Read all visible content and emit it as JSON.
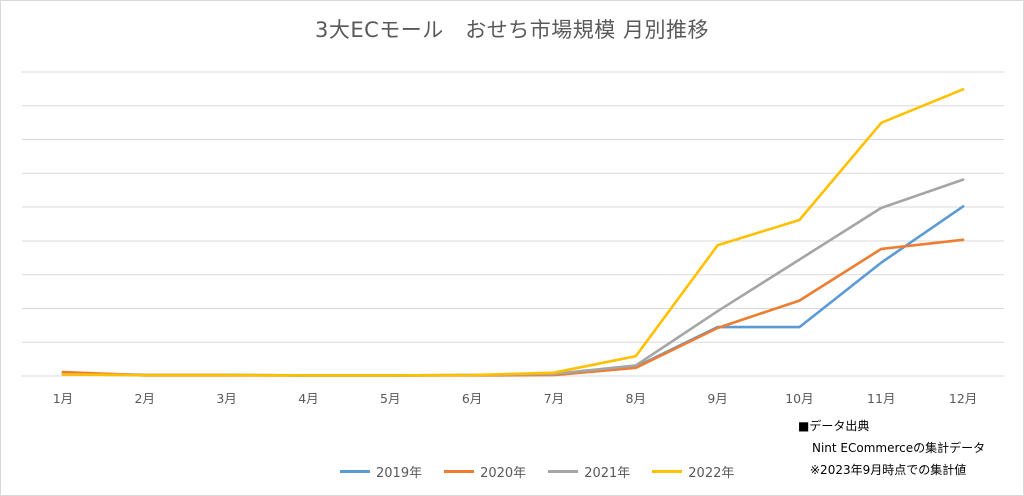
{
  "chart_data": {
    "type": "line",
    "title": "3大ECモール　おせち市場規模 月別推移",
    "xlabel": "",
    "ylabel": "",
    "categories": [
      "1月",
      "2月",
      "3月",
      "4月",
      "5月",
      "6月",
      "7月",
      "8月",
      "9月",
      "10月",
      "11月",
      "12月"
    ],
    "ylim": [
      0,
      100
    ],
    "y_gridlines": [
      0,
      11.1,
      22.2,
      33.3,
      44.4,
      55.6,
      66.7,
      77.8,
      88.9,
      100
    ],
    "grid": true,
    "legend_position": "bottom",
    "series": [
      {
        "name": "2019年",
        "color": "#5b9bd5",
        "values": [
          1.0,
          0.4,
          0.4,
          0.2,
          0.2,
          0.3,
          0.6,
          3.0,
          16.1,
          16.1,
          37.3,
          55.8
        ]
      },
      {
        "name": "2020年",
        "color": "#ed7d31",
        "values": [
          1.3,
          0.2,
          0.2,
          0.2,
          0.2,
          0.2,
          0.3,
          2.7,
          15.8,
          24.8,
          41.8,
          44.8
        ]
      },
      {
        "name": "2021年",
        "color": "#a5a5a5",
        "values": [
          0.5,
          0.3,
          0.3,
          0.2,
          0.2,
          0.3,
          0.7,
          3.5,
          21.3,
          38.3,
          55.3,
          64.6
        ]
      },
      {
        "name": "2022年",
        "color": "#ffc000",
        "values": [
          0.5,
          0.3,
          0.3,
          0.2,
          0.2,
          0.3,
          1.1,
          6.5,
          43.0,
          51.3,
          83.3,
          94.3
        ]
      }
    ]
  },
  "source_note": {
    "line1": "■データ出典",
    "line2": "Nint ECommerceの集計データ",
    "line3": "※2023年9月時点での集計値"
  },
  "style": {
    "gridline_color": "#d9d9d9",
    "axis_color": "#d9d9d9"
  }
}
